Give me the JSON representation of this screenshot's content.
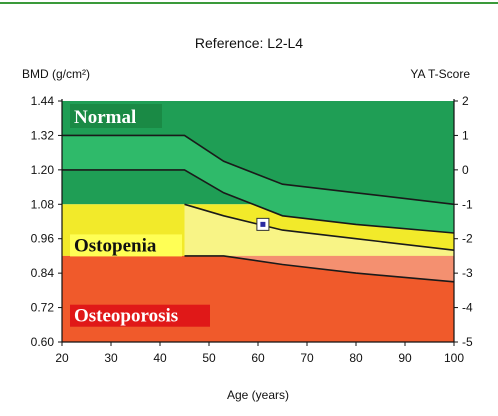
{
  "chart_data": {
    "type": "area",
    "title": "Reference: L2-L4",
    "ylabel": "BMD (g/cm²)",
    "y2label": "YA T-Score",
    "xlabel": "Age (years)",
    "xlim": [
      20,
      100
    ],
    "ylim": [
      0.6,
      1.44
    ],
    "y2lim": [
      -5,
      2
    ],
    "x_ticks": [
      "20",
      "30",
      "40",
      "50",
      "60",
      "70",
      "80",
      "90",
      "100"
    ],
    "y_ticks": [
      "1.44",
      "1.32",
      "1.20",
      "1.08",
      "0.96",
      "0.84",
      "0.72",
      "0.60"
    ],
    "y2_ticks": [
      "2",
      "1",
      "0",
      "-1",
      "-2",
      "-3",
      "-4",
      "-5"
    ],
    "x_tick_values": [
      20,
      30,
      40,
      50,
      60,
      70,
      80,
      90,
      100
    ],
    "y_tick_values": [
      1.44,
      1.32,
      1.2,
      1.08,
      0.96,
      0.84,
      0.72,
      0.6
    ],
    "y2_tick_values": [
      2,
      1,
      0,
      -1,
      -2,
      -3,
      -4,
      -5
    ],
    "grid": false,
    "zones": [
      {
        "name": "Normal",
        "from": 1.08,
        "to": 1.44,
        "color": "#1f9e55"
      },
      {
        "name": "Ostopenia",
        "from": 0.9,
        "to": 1.08,
        "color": "#f2ea2a"
      },
      {
        "name": "Osteoporosis",
        "from": 0.6,
        "to": 0.9,
        "color": "#f05a2b"
      }
    ],
    "zone_label_colors": {
      "Normal": {
        "text": "#ffffff",
        "bg": "#1a8a45"
      },
      "Ostopenia": {
        "text": "#111111",
        "bg": "#ffff55"
      },
      "Osteoporosis": {
        "text": "#ffffff",
        "bg": "#e01818"
      }
    },
    "reference_curves": [
      {
        "x": [
          20,
          45,
          53,
          65,
          80,
          100
        ],
        "y": [
          1.32,
          1.32,
          1.23,
          1.15,
          1.12,
          1.08
        ]
      },
      {
        "x": [
          20,
          45,
          53,
          65,
          80,
          100
        ],
        "y": [
          1.2,
          1.2,
          1.12,
          1.04,
          1.01,
          0.98
        ]
      },
      {
        "x": [
          45,
          53,
          65,
          80,
          100
        ],
        "y": [
          1.08,
          1.04,
          0.99,
          0.96,
          0.92
        ]
      },
      {
        "x": [
          45,
          53,
          65,
          80,
          100
        ],
        "y": [
          0.9,
          0.9,
          0.87,
          0.84,
          0.81
        ]
      }
    ],
    "band_lightening": {
      "green_band": {
        "x": [
          20,
          45,
          53,
          65,
          80,
          100
        ],
        "y_top": [
          1.32,
          1.32,
          1.23,
          1.15,
          1.12,
          1.08
        ],
        "y_bottom": [
          1.2,
          1.2,
          1.12,
          1.04,
          1.01,
          0.98
        ],
        "color": "#2fba6a"
      },
      "yellow_band": {
        "x": [
          45,
          53,
          65,
          80,
          100
        ],
        "y_top": [
          1.08,
          1.04,
          0.99,
          0.96,
          0.92
        ],
        "y_bottom": [
          0.9,
          0.9,
          0.87,
          0.84,
          0.81
        ],
        "color": "#f8f486"
      },
      "red_band": {
        "x": [
          45,
          53,
          65,
          80,
          100
        ],
        "y_top": [
          0.9,
          0.9,
          0.87,
          0.84,
          0.81
        ],
        "y_bottom": [
          0.9,
          0.9,
          0.87,
          0.84,
          0.81
        ],
        "color": "#f49070"
      }
    },
    "patient_point": {
      "x": 61,
      "y": 1.01,
      "marker_color": "#2a2aa0"
    }
  }
}
